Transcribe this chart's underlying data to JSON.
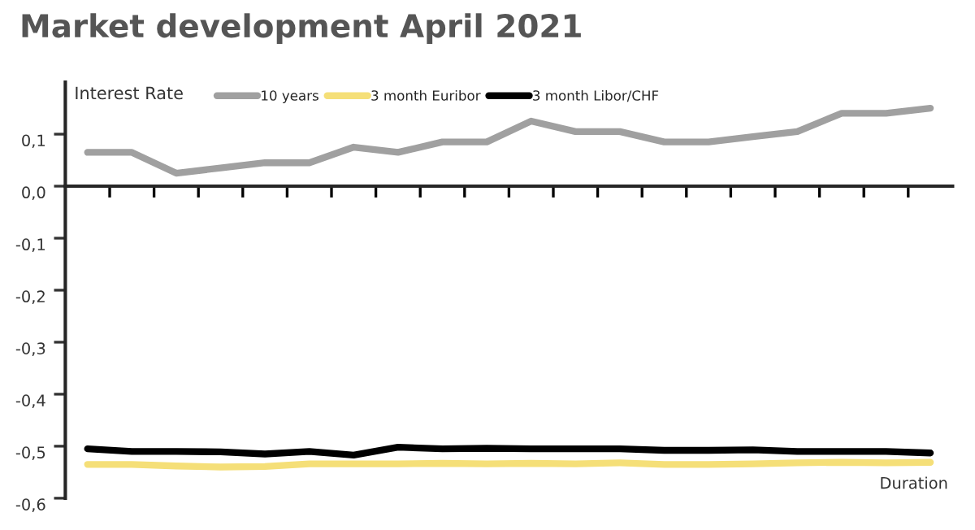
{
  "chart_data": {
    "type": "line",
    "title": "Market development April 2021",
    "ylabel": "Interest Rate",
    "xlabel": "Duration",
    "categories": [
      null,
      null,
      null,
      null,
      null,
      null,
      null,
      null,
      null,
      null,
      null,
      null,
      null,
      null,
      null,
      null,
      null,
      null,
      null,
      null
    ],
    "series": [
      {
        "name": "10 years",
        "color": "#a0a0a0",
        "values": [
          0.065,
          0.065,
          0.025,
          0.035,
          0.045,
          0.045,
          0.075,
          0.065,
          0.085,
          0.085,
          0.125,
          0.105,
          0.105,
          0.085,
          0.085,
          0.095,
          0.105,
          0.14,
          0.14,
          0.15
        ]
      },
      {
        "name": "3 month Euribor",
        "color": "#f5df78",
        "values": [
          -0.535,
          -0.535,
          -0.538,
          -0.54,
          -0.539,
          -0.534,
          -0.534,
          -0.534,
          -0.533,
          -0.534,
          -0.533,
          -0.534,
          -0.532,
          -0.535,
          -0.535,
          -0.534,
          -0.532,
          -0.531,
          -0.532,
          -0.531
        ]
      },
      {
        "name": "3 month Libor/CHF",
        "color": "#000000",
        "values": [
          -0.505,
          -0.51,
          -0.51,
          -0.511,
          -0.515,
          -0.51,
          -0.517,
          -0.502,
          -0.505,
          -0.504,
          -0.505,
          -0.505,
          -0.505,
          -0.508,
          -0.508,
          -0.507,
          -0.51,
          -0.51,
          -0.51,
          -0.513
        ]
      }
    ],
    "ylim": [
      -0.6,
      0.2
    ],
    "yticks": [
      {
        "value": -0.6,
        "label": "-0,6"
      },
      {
        "value": -0.5,
        "label": "-0,5"
      },
      {
        "value": -0.4,
        "label": "-0,4"
      },
      {
        "value": -0.3,
        "label": "-0,3"
      },
      {
        "value": -0.2,
        "label": "-0,2"
      },
      {
        "value": -0.1,
        "label": "-0,1"
      },
      {
        "value": 0.0,
        "label": "0,0"
      },
      {
        "value": 0.1,
        "label": "0,1"
      }
    ],
    "tick_labels": "y",
    "legend": "top",
    "marker": "none",
    "line_style": "solid"
  }
}
